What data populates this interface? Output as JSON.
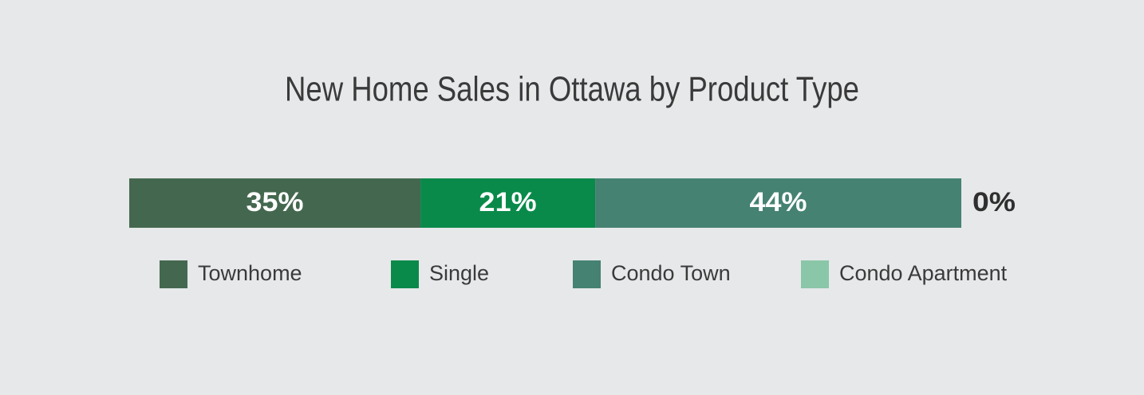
{
  "chart_data": {
    "type": "stacked_bar",
    "title": "New Home Sales in Ottawa by Product Type",
    "categories": [
      "Townhome",
      "Single",
      "Condo Town",
      "Condo Apartment"
    ],
    "values": [
      35,
      21,
      44,
      0
    ],
    "value_labels": [
      "35%",
      "21%",
      "44%",
      "0%"
    ],
    "colors": [
      "#44684f",
      "#0a8a4a",
      "#458272",
      "#8ac6a8"
    ],
    "legend": "bottom"
  }
}
